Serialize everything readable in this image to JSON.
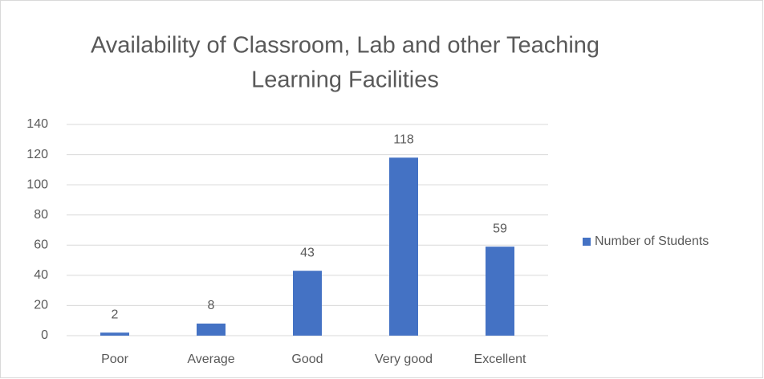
{
  "chart_data": {
    "type": "bar",
    "title": [
      "Availability of Classroom, Lab and other Teaching",
      "Learning Facilities"
    ],
    "categories": [
      "Poor",
      "Average",
      "Good",
      "Very good",
      "Excellent"
    ],
    "series": [
      {
        "name": "Number of Students",
        "color": "#4472c4",
        "values": [
          2,
          8,
          43,
          118,
          59
        ]
      }
    ],
    "ylim": [
      0,
      140
    ],
    "yticks": [
      0,
      20,
      40,
      60,
      80,
      100,
      120,
      140
    ],
    "grid": true,
    "legend": "right"
  }
}
